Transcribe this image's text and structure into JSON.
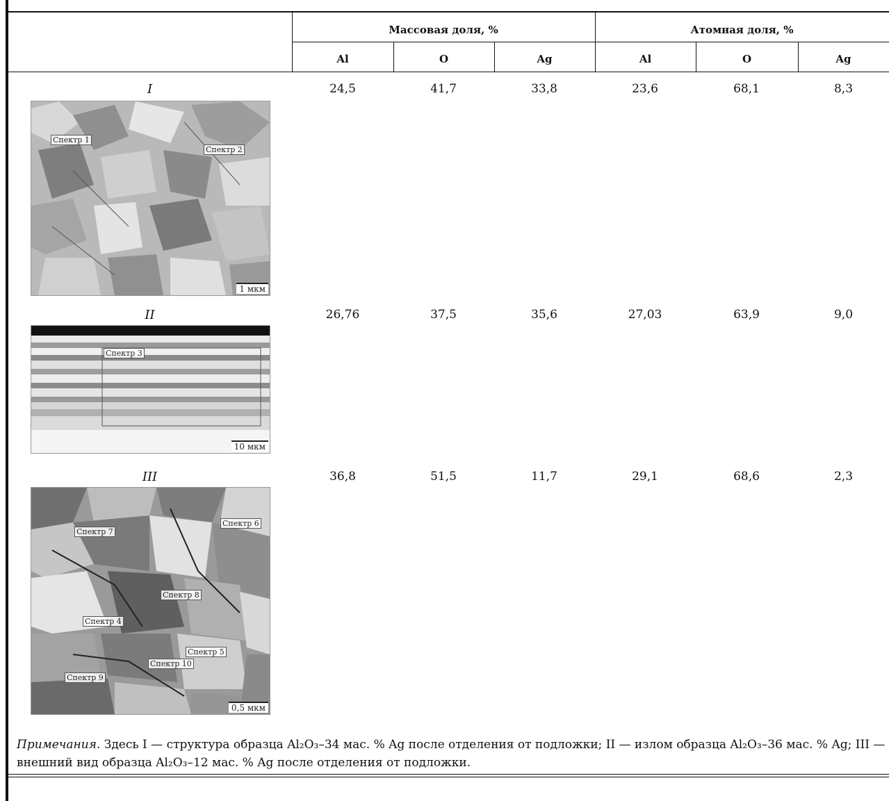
{
  "header": {
    "mass_group": "Массовая доля, %",
    "atomic_group": "Атомная доля, %",
    "columns": [
      "Al",
      "O",
      "Ag",
      "Al",
      "O",
      "Ag"
    ]
  },
  "rows": [
    {
      "label": "I",
      "values": [
        "24,5",
        "41,7",
        "33,8",
        "23,6",
        "68,1",
        "8,3"
      ],
      "image": {
        "spectra": [
          "Спектр 1",
          "Спектр 2"
        ],
        "scale": "1 мкм"
      }
    },
    {
      "label": "II",
      "values": [
        "26,76",
        "37,5",
        "35,6",
        "27,03",
        "63,9",
        "9,0"
      ],
      "image": {
        "spectra": [
          "Спектр 3"
        ],
        "scale": "10 мкм"
      }
    },
    {
      "label": "III",
      "values": [
        "36,8",
        "51,5",
        "11,7",
        "29,1",
        "68,6",
        "2,3"
      ],
      "image": {
        "spectra": [
          "Спектр 7",
          "Спектр 6",
          "Спектр 8",
          "Спектр 4",
          "Спектр 5",
          "Спектр 10",
          "Спектр 9"
        ],
        "scale": "0,5 мкм"
      }
    }
  ],
  "note": {
    "prefix": "Примечания",
    "body": ". Здесь I — структура образца Al₂O₃–34 мас. % Ag после отделения от подложки; II — излом образца Al₂O₃–36 мас. % Ag; III — внешний вид образца Al₂O₃–12 мас. % Ag после отделения от подложки."
  }
}
